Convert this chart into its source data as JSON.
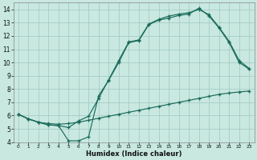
{
  "bg_color": "#c8e8e0",
  "grid_color": "#a0c8c0",
  "line_color": "#1a6b5a",
  "xlabel": "Humidex (Indice chaleur)",
  "xlim": [
    -0.5,
    23.5
  ],
  "ylim": [
    4,
    14.5
  ],
  "xticks": [
    0,
    1,
    2,
    3,
    4,
    5,
    6,
    7,
    8,
    9,
    10,
    11,
    12,
    13,
    14,
    15,
    16,
    17,
    18,
    19,
    20,
    21,
    22,
    23
  ],
  "yticks": [
    4,
    5,
    6,
    7,
    8,
    9,
    10,
    11,
    12,
    13,
    14
  ],
  "line1_x": [
    0,
    1,
    2,
    3,
    4,
    5,
    6,
    7,
    8,
    9,
    10,
    11,
    12,
    13,
    14,
    15,
    16,
    17,
    18,
    19,
    20,
    21,
    22,
    23
  ],
  "line1_y": [
    6.1,
    5.75,
    5.5,
    5.4,
    5.35,
    5.4,
    5.5,
    5.65,
    5.8,
    5.95,
    6.1,
    6.25,
    6.4,
    6.55,
    6.7,
    6.85,
    7.0,
    7.15,
    7.3,
    7.45,
    7.6,
    7.7,
    7.78,
    7.85
  ],
  "line2_x": [
    0,
    1,
    2,
    3,
    4,
    5,
    6,
    7,
    8,
    9,
    10,
    11,
    12,
    13,
    14,
    15,
    16,
    17,
    18,
    19,
    20,
    21,
    22,
    23
  ],
  "line2_y": [
    6.1,
    5.75,
    5.5,
    5.3,
    5.25,
    4.1,
    4.1,
    4.4,
    7.5,
    8.65,
    10.0,
    11.5,
    11.65,
    12.85,
    13.2,
    13.35,
    13.55,
    13.65,
    14.1,
    13.5,
    12.6,
    11.5,
    10.0,
    9.5
  ],
  "line3_x": [
    0,
    1,
    2,
    3,
    4,
    5,
    6,
    7,
    8,
    9,
    10,
    11,
    12,
    13,
    14,
    15,
    16,
    17,
    18,
    19,
    20,
    21,
    22,
    23
  ],
  "line3_y": [
    6.1,
    5.75,
    5.5,
    5.3,
    5.25,
    5.1,
    5.6,
    5.95,
    7.3,
    8.7,
    10.15,
    11.55,
    11.7,
    12.9,
    13.25,
    13.5,
    13.65,
    13.75,
    14.0,
    13.6,
    12.65,
    11.6,
    10.15,
    9.55
  ]
}
